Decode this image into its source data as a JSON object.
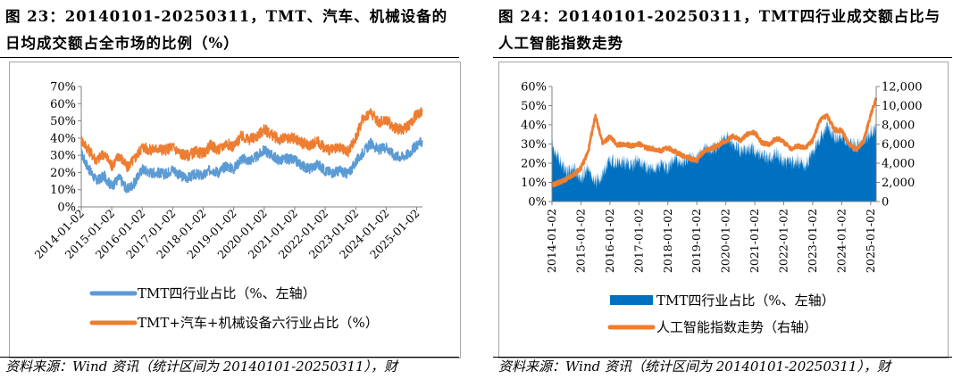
{
  "left_panel": {
    "title_line1": "图 23：20140101-20250311，TMT、汽车、机械设备的",
    "title_line2": "日均成交额占全市场的比例（%）",
    "source": "资料来源：Wind 资讯（统计区间为 20140101-20250311），财"
  },
  "right_panel": {
    "title_line1": "图 24：20140101-20250311，TMT四行业成交额占比与",
    "title_line2": "人工智能指数走势",
    "source": "资料来源：Wind 资讯（统计区间为 20140101-20250311），财"
  },
  "colors": {
    "blue_line": "#5b9bd5",
    "orange_line": "#ed7d31",
    "blue_area": "#0070c0",
    "axis": "#808080"
  },
  "chart_data": [
    {
      "id": "left",
      "type": "line",
      "ylim": [
        0,
        70
      ],
      "y_ticks": [
        "0%",
        "10%",
        "20%",
        "30%",
        "40%",
        "50%",
        "60%",
        "70%"
      ],
      "x_ticks": [
        "2014-01-02",
        "2015-01-02",
        "2016-01-02",
        "2017-01-02",
        "2018-01-02",
        "2019-01-02",
        "2020-01-02",
        "2021-01-02",
        "2022-01-02",
        "2023-01-02",
        "2024-01-02",
        "2025-01-02"
      ],
      "x": [
        2014.0,
        2014.25,
        2014.5,
        2014.75,
        2015.0,
        2015.25,
        2015.5,
        2015.75,
        2016.0,
        2016.25,
        2016.5,
        2016.75,
        2017.0,
        2017.25,
        2017.5,
        2017.75,
        2018.0,
        2018.25,
        2018.5,
        2018.75,
        2019.0,
        2019.25,
        2019.5,
        2019.75,
        2020.0,
        2020.25,
        2020.5,
        2020.75,
        2021.0,
        2021.25,
        2021.5,
        2021.75,
        2022.0,
        2022.25,
        2022.5,
        2022.75,
        2023.0,
        2023.25,
        2023.5,
        2023.75,
        2024.0,
        2024.25,
        2024.5,
        2024.75,
        2025.0,
        2025.19
      ],
      "series": [
        {
          "name": "TMT四行业占比（%、左轴）",
          "color": "#5b9bd5",
          "values": [
            31,
            22,
            15,
            18,
            12,
            17,
            10,
            14,
            22,
            20,
            20,
            19,
            22,
            18,
            17,
            19,
            18,
            22,
            20,
            24,
            22,
            28,
            27,
            29,
            33,
            30,
            27,
            28,
            27,
            24,
            22,
            25,
            21,
            20,
            21,
            19,
            26,
            32,
            37,
            33,
            35,
            30,
            29,
            31,
            36,
            38
          ]
        },
        {
          "name": "TMT+汽车+机械设备六行业占比（%）",
          "color": "#ed7d31",
          "values": [
            39,
            33,
            27,
            31,
            24,
            30,
            23,
            28,
            35,
            33,
            34,
            33,
            35,
            31,
            30,
            32,
            31,
            36,
            33,
            37,
            35,
            41,
            39,
            41,
            45,
            42,
            39,
            40,
            40,
            37,
            36,
            38,
            34,
            33,
            34,
            32,
            40,
            52,
            55,
            49,
            51,
            46,
            45,
            47,
            54,
            56
          ]
        }
      ],
      "legend": [
        "TMT四行业占比（%、左轴）",
        "TMT+汽车+机械设备六行业占比（%）"
      ]
    },
    {
      "id": "right",
      "type": "area+line",
      "ylim_left": [
        0,
        60
      ],
      "ylim_right": [
        0,
        12000
      ],
      "y_ticks_left": [
        "0%",
        "10%",
        "20%",
        "30%",
        "40%",
        "50%",
        "60%"
      ],
      "y_ticks_right": [
        "0",
        "2,000",
        "4,000",
        "6,000",
        "8,000",
        "10,000",
        "12,000"
      ],
      "x_ticks": [
        "2014-01-02",
        "2015-01-02",
        "2016-01-02",
        "2017-01-02",
        "2018-01-02",
        "2019-01-02",
        "2020-01-02",
        "2021-01-02",
        "2022-01-02",
        "2023-01-02",
        "2024-01-02",
        "2025-01-02"
      ],
      "x": [
        2014.0,
        2014.25,
        2014.5,
        2014.75,
        2015.0,
        2015.25,
        2015.5,
        2015.75,
        2016.0,
        2016.25,
        2016.5,
        2016.75,
        2017.0,
        2017.25,
        2017.5,
        2017.75,
        2018.0,
        2018.25,
        2018.5,
        2018.75,
        2019.0,
        2019.25,
        2019.5,
        2019.75,
        2020.0,
        2020.25,
        2020.5,
        2020.75,
        2021.0,
        2021.25,
        2021.5,
        2021.75,
        2022.0,
        2022.25,
        2022.5,
        2022.75,
        2023.0,
        2023.25,
        2023.5,
        2023.75,
        2024.0,
        2024.25,
        2024.5,
        2024.75,
        2025.0,
        2025.19
      ],
      "series": [
        {
          "name": "TMT四行业占比（%、左轴）",
          "axis": "left",
          "color": "#0070c0",
          "values": [
            30,
            22,
            15,
            18,
            12,
            17,
            10,
            14,
            22,
            20,
            20,
            19,
            22,
            18,
            17,
            19,
            18,
            22,
            20,
            24,
            22,
            28,
            27,
            29,
            34,
            30,
            27,
            28,
            27,
            24,
            22,
            25,
            21,
            20,
            21,
            19,
            26,
            33,
            40,
            33,
            35,
            30,
            29,
            31,
            36,
            38
          ]
        },
        {
          "name": "人工智能指数走势（右轴）",
          "axis": "right",
          "color": "#ed7d31",
          "values": [
            1700,
            2000,
            2300,
            2800,
            3500,
            5200,
            9000,
            6000,
            6800,
            5900,
            6000,
            5800,
            6000,
            5600,
            5500,
            5300,
            5600,
            5200,
            4800,
            4500,
            4300,
            5300,
            5500,
            5900,
            6300,
            6800,
            6400,
            7000,
            7200,
            6100,
            6000,
            6600,
            6200,
            5500,
            5800,
            5600,
            6400,
            8500,
            8900,
            7500,
            7400,
            6000,
            5400,
            6300,
            9000,
            10700
          ]
        }
      ],
      "legend": [
        "TMT四行业占比（%、左轴）",
        "人工智能指数走势（右轴）"
      ]
    }
  ]
}
